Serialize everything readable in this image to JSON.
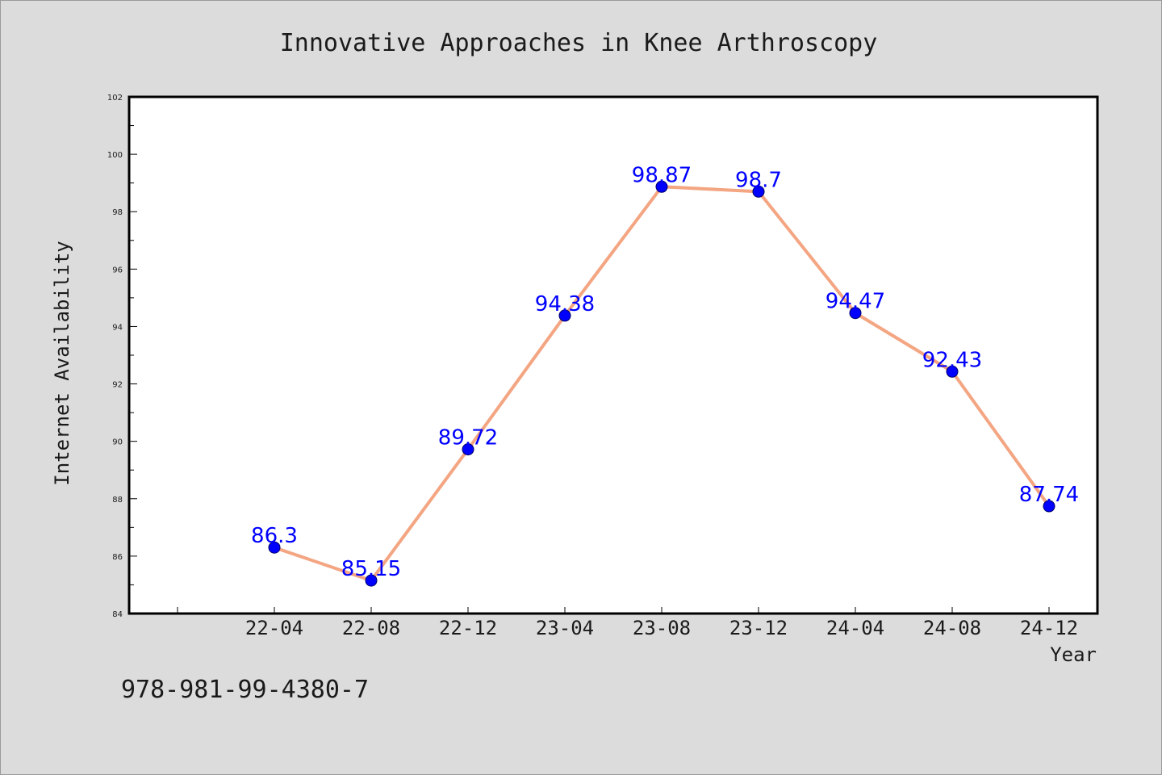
{
  "chart_data": {
    "type": "line",
    "title": "Innovative Approaches in Knee Arthroscopy",
    "xlabel": "Year",
    "ylabel": "Internet Availability",
    "categories": [
      "22-04",
      "22-08",
      "22-12",
      "23-04",
      "23-08",
      "23-12",
      "24-04",
      "24-08",
      "24-12"
    ],
    "series": [
      {
        "values": [
          86.3,
          85.15,
          89.72,
          94.38,
          98.87,
          98.7,
          94.47,
          92.43,
          87.74
        ],
        "labels": [
          "86.3",
          "85.15",
          "89.72",
          "94.38",
          "98.87",
          "98.7",
          "94.47",
          "92.43",
          "87.74"
        ],
        "line_color": "#f4a582",
        "marker_color": "#0000ff",
        "label_color": "#0000ff"
      }
    ],
    "ylim": [
      84,
      102
    ],
    "yticks": [
      "84",
      "86",
      "88",
      "90",
      "92",
      "94",
      "96",
      "98",
      "100",
      "102"
    ],
    "grid": false,
    "legend": "none"
  },
  "footnote": "978-981-99-4380-7",
  "colors": {
    "background": "#dcdcdc",
    "plot_background": "#ffffff"
  }
}
